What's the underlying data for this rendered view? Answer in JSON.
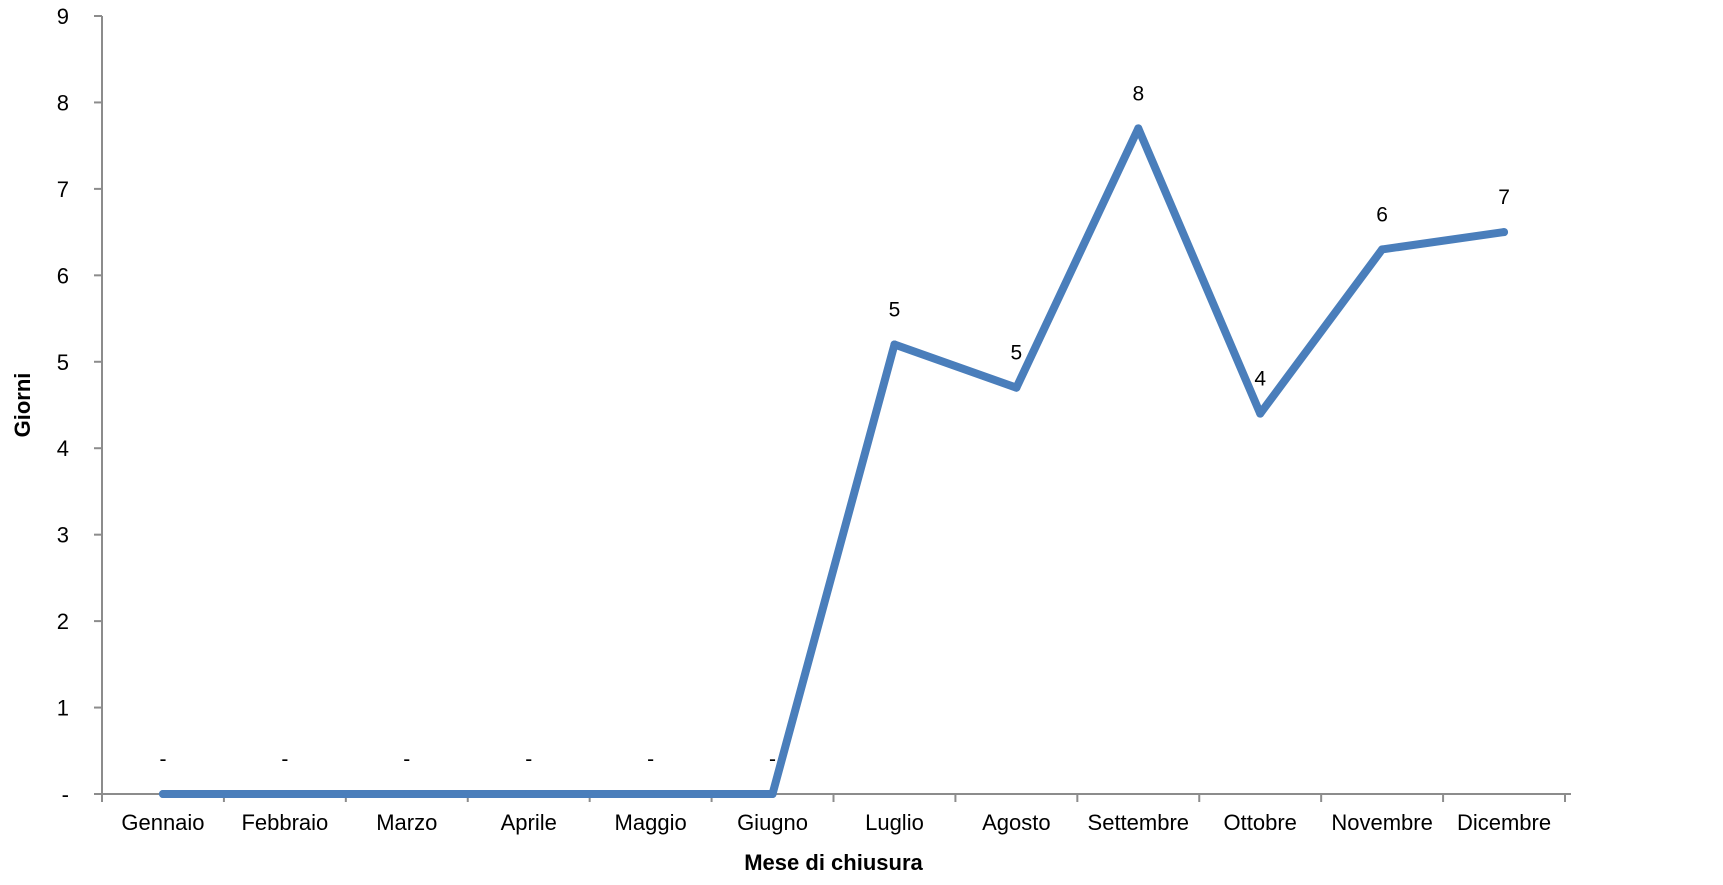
{
  "chart_data": {
    "type": "line",
    "title": "",
    "xlabel": "Mese di chiusura",
    "ylabel": "Giorni",
    "ylim": [
      0,
      9
    ],
    "y_ticks": [
      "-",
      "1",
      "2",
      "3",
      "4",
      "5",
      "6",
      "7",
      "8",
      "9"
    ],
    "categories": [
      "Gennaio",
      "Febbraio",
      "Marzo",
      "Aprile",
      "Maggio",
      "Giugno",
      "Luglio",
      "Agosto",
      "Settembre",
      "Ottobre",
      "Novembre",
      "Dicembre"
    ],
    "series": [
      {
        "values": [
          0,
          0,
          0,
          0,
          0,
          0,
          5.2,
          4.7,
          7.7,
          4.4,
          6.3,
          6.5
        ],
        "data_labels": [
          "-",
          "-",
          "-",
          "-",
          "-",
          "-",
          "5",
          "5",
          "8",
          "4",
          "6",
          "7"
        ],
        "color": "#4a7ebb"
      }
    ],
    "grid": false,
    "legend": "none",
    "axis_color": "#8c8c8c"
  }
}
